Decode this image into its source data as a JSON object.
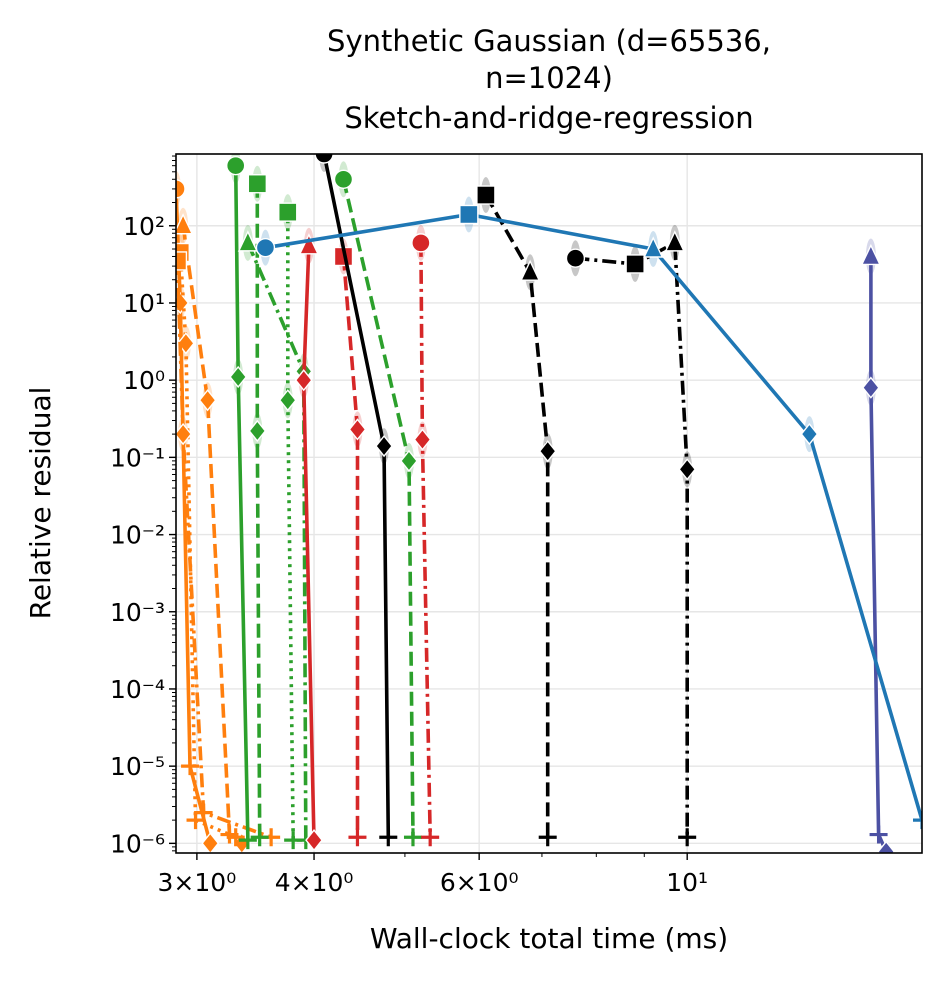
{
  "chart_data": {
    "type": "line",
    "title": [
      "Synthetic Gaussian (d=65536,",
      "n=1024)",
      "Sketch-and-ridge-regression"
    ],
    "xlabel": "Wall-clock total time (ms)",
    "ylabel": "Relative residual",
    "xscale": "log",
    "yscale": "log",
    "xlim": [
      2.85,
      17.8
    ],
    "ylim": [
      7.5e-07,
      850
    ],
    "grid": true,
    "legend": "none",
    "x_ticks": [
      {
        "value": 3,
        "label": "3×10⁰"
      },
      {
        "value": 4,
        "label": "4×10⁰"
      },
      {
        "value": 6,
        "label": "6×10⁰"
      },
      {
        "value": 10,
        "label": "10¹"
      }
    ],
    "y_ticks": [
      {
        "value": 1e-06,
        "label": "10⁻⁶"
      },
      {
        "value": 1e-05,
        "label": "10⁻⁵"
      },
      {
        "value": 0.0001,
        "label": "10⁻⁴"
      },
      {
        "value": 0.001,
        "label": "10⁻³"
      },
      {
        "value": 0.01,
        "label": "10⁻²"
      },
      {
        "value": 0.1,
        "label": "10⁻¹"
      },
      {
        "value": 1,
        "label": "10⁰"
      },
      {
        "value": 10,
        "label": "10¹"
      },
      {
        "value": 100,
        "label": "10²"
      }
    ],
    "series": [
      {
        "color": "#ff7f0e",
        "dash": "solid",
        "points": [
          {
            "x": 2.85,
            "y": 300,
            "m": "o"
          },
          {
            "x": 2.88,
            "y": 10,
            "m": "D"
          },
          {
            "x": 2.95,
            "y": 1e-05,
            "m": "+"
          },
          {
            "x": 3.1,
            "y": 1e-06,
            "m": "D"
          }
        ]
      },
      {
        "color": "#ff7f0e",
        "dash": "dash",
        "points": [
          {
            "x": 2.9,
            "y": 100,
            "m": "^"
          },
          {
            "x": 3.08,
            "y": 0.55,
            "m": "D"
          },
          {
            "x": 3.25,
            "y": 1.3e-06,
            "m": "+"
          },
          {
            "x": 3.35,
            "y": 1e-06,
            "m": "D"
          }
        ]
      },
      {
        "color": "#ff7f0e",
        "dash": "dot",
        "points": [
          {
            "x": 2.88,
            "y": 45,
            "m": "s"
          },
          {
            "x": 2.92,
            "y": 3,
            "m": "D"
          },
          {
            "x": 2.99,
            "y": 2e-06,
            "m": "+"
          },
          {
            "x": 3.3,
            "y": 1.2e-06,
            "m": "+"
          }
        ]
      },
      {
        "color": "#ff7f0e",
        "dash": "dashdot",
        "points": [
          {
            "x": 2.86,
            "y": 35,
            "m": "s"
          },
          {
            "x": 2.9,
            "y": 0.2,
            "m": "D"
          },
          {
            "x": 3.05,
            "y": 2.5e-06,
            "m": "+"
          },
          {
            "x": 3.6,
            "y": 1.2e-06,
            "m": "+"
          }
        ]
      },
      {
        "color": "#2ca02c",
        "dash": "solid",
        "points": [
          {
            "x": 3.3,
            "y": 600,
            "m": "o"
          },
          {
            "x": 3.32,
            "y": 1.1,
            "m": "D"
          },
          {
            "x": 3.4,
            "y": 1.1e-06,
            "m": "+"
          }
        ]
      },
      {
        "color": "#2ca02c",
        "dash": "dash",
        "points": [
          {
            "x": 3.48,
            "y": 350,
            "m": "s"
          },
          {
            "x": 3.48,
            "y": 0.22,
            "m": "D"
          },
          {
            "x": 3.5,
            "y": 1.2e-06,
            "m": "+"
          }
        ]
      },
      {
        "color": "#2ca02c",
        "dash": "dot",
        "points": [
          {
            "x": 3.75,
            "y": 150,
            "m": "s"
          },
          {
            "x": 3.75,
            "y": 0.55,
            "m": "D"
          },
          {
            "x": 3.8,
            "y": 1.1e-06,
            "m": "+"
          }
        ]
      },
      {
        "color": "#2ca02c",
        "dash": "dashdot",
        "points": [
          {
            "x": 3.4,
            "y": 60,
            "m": "^"
          },
          {
            "x": 3.9,
            "y": 1.3,
            "m": "D"
          },
          {
            "x": 3.92,
            "y": 1.1e-06,
            "m": "+"
          }
        ]
      },
      {
        "color": "#2ca02c",
        "dash": "dash",
        "points": [
          {
            "x": 4.3,
            "y": 400,
            "m": "o"
          },
          {
            "x": 5.05,
            "y": 0.09,
            "m": "D"
          },
          {
            "x": 5.1,
            "y": 1.2e-06,
            "m": "+"
          }
        ]
      },
      {
        "color": "#d62728",
        "dash": "solid",
        "points": [
          {
            "x": 3.95,
            "y": 55,
            "m": "^"
          },
          {
            "x": 3.9,
            "y": 1,
            "m": "D"
          },
          {
            "x": 4.0,
            "y": 1.1e-06,
            "m": "D"
          }
        ]
      },
      {
        "color": "#d62728",
        "dash": "dash",
        "points": [
          {
            "x": 4.3,
            "y": 40,
            "m": "s"
          },
          {
            "x": 4.45,
            "y": 0.23,
            "m": "D"
          },
          {
            "x": 4.45,
            "y": 1.2e-06,
            "m": "+"
          }
        ]
      },
      {
        "color": "#d62728",
        "dash": "dashdot",
        "points": [
          {
            "x": 5.2,
            "y": 60,
            "m": "o"
          },
          {
            "x": 5.22,
            "y": 0.17,
            "m": "D"
          },
          {
            "x": 5.32,
            "y": 1.2e-06,
            "m": "+"
          }
        ]
      },
      {
        "color": "#000000",
        "dash": "solid",
        "points": [
          {
            "x": 4.1,
            "y": 850,
            "m": "o"
          },
          {
            "x": 4.75,
            "y": 0.14,
            "m": "D"
          },
          {
            "x": 4.8,
            "y": 1.2e-06,
            "m": "+"
          }
        ]
      },
      {
        "color": "#000000",
        "dash": "dash",
        "points": [
          {
            "x": 6.1,
            "y": 250,
            "m": "s"
          },
          {
            "x": 6.8,
            "y": 25,
            "m": "^"
          },
          {
            "x": 7.1,
            "y": 0.12,
            "m": "D"
          },
          {
            "x": 7.1,
            "y": 1.2e-06,
            "m": "+"
          }
        ]
      },
      {
        "color": "#000000",
        "dash": "dashdot",
        "points": [
          {
            "x": 7.6,
            "y": 38,
            "m": "o"
          },
          {
            "x": 8.8,
            "y": 32,
            "m": "s"
          },
          {
            "x": 9.7,
            "y": 60,
            "m": "^"
          },
          {
            "x": 10.0,
            "y": 0.07,
            "m": "D"
          },
          {
            "x": 10.0,
            "y": 1.2e-06,
            "m": "+"
          }
        ]
      },
      {
        "color": "#4c51a3",
        "dash": "solid",
        "points": [
          {
            "x": 15.7,
            "y": 40,
            "m": "^"
          },
          {
            "x": 15.7,
            "y": 0.8,
            "m": "D"
          },
          {
            "x": 16.0,
            "y": 1.3e-06,
            "m": "+"
          },
          {
            "x": 16.3,
            "y": 7.8e-07,
            "m": "D"
          }
        ]
      },
      {
        "color": "#1f77b4",
        "dash": "solid",
        "points": [
          {
            "x": 3.55,
            "y": 52,
            "m": "o"
          },
          {
            "x": 5.85,
            "y": 140,
            "m": "s"
          },
          {
            "x": 9.2,
            "y": 50,
            "m": "^"
          },
          {
            "x": 13.5,
            "y": 0.2,
            "m": "D"
          },
          {
            "x": 17.8,
            "y": 2e-06,
            "m": "+"
          }
        ]
      }
    ]
  }
}
